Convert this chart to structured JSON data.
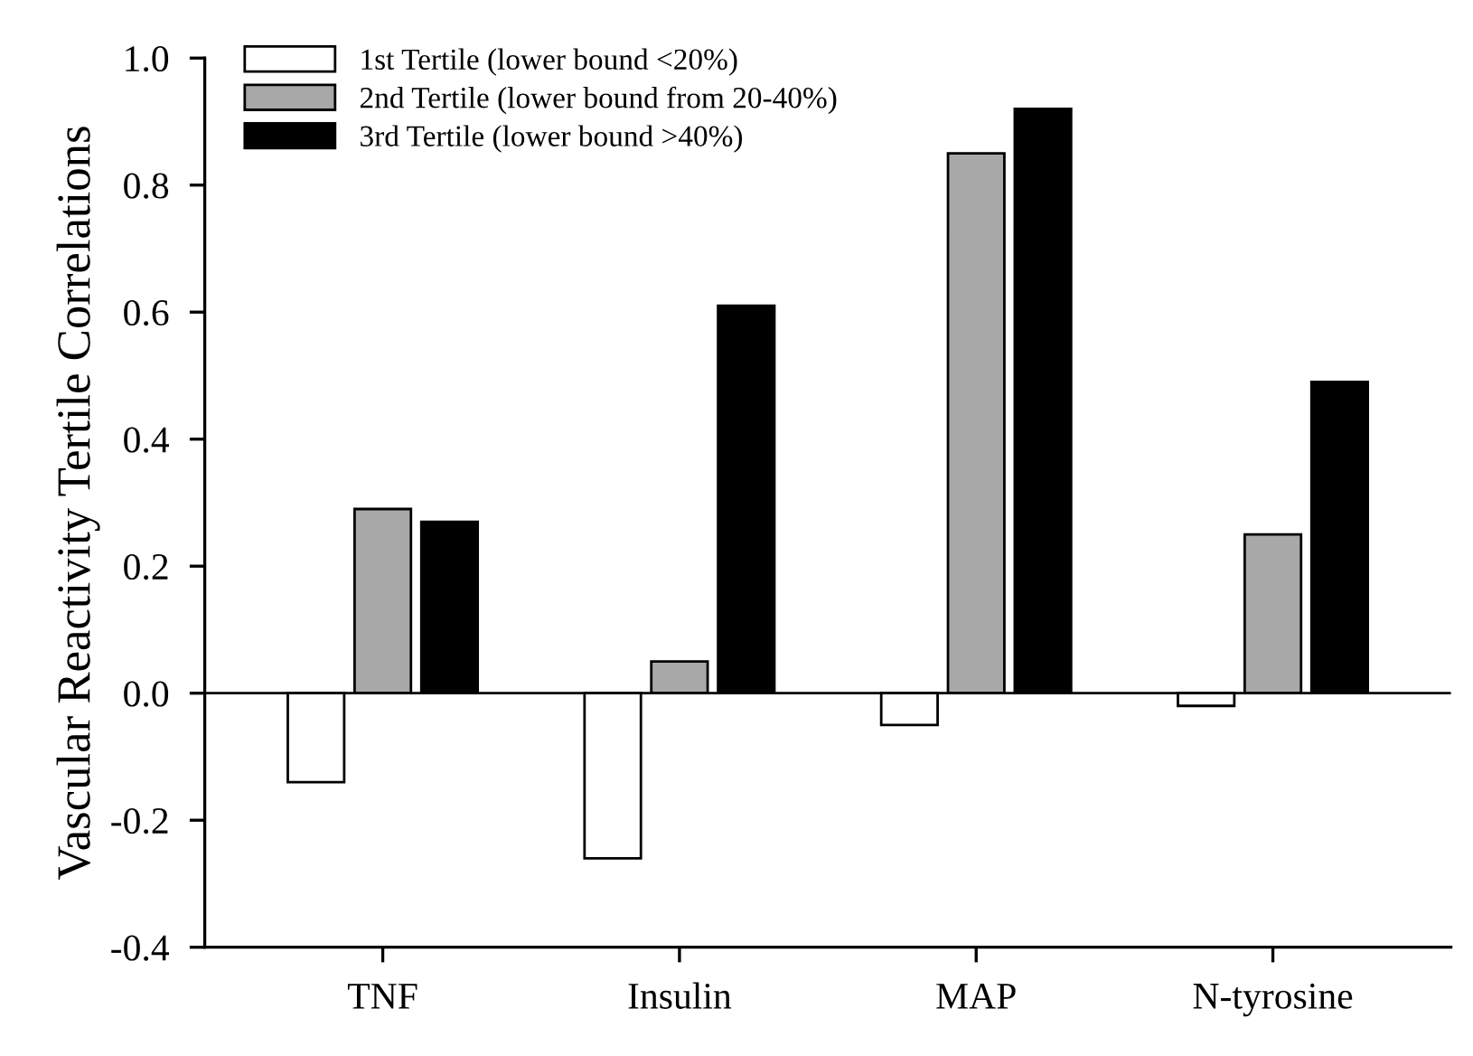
{
  "chart_data": {
    "type": "bar",
    "ylabel": "Vascular Reactivity Tertile Correlations",
    "categories": [
      "TNF",
      "Insulin",
      "MAP",
      "N-tyrosine"
    ],
    "series": [
      {
        "name": "1st Tertile (lower bound <20%)",
        "color": "#ffffff",
        "values": [
          -0.14,
          -0.26,
          -0.05,
          -0.02
        ]
      },
      {
        "name": "2nd Tertile (lower bound from 20-40%)",
        "color": "#a8a8a8",
        "values": [
          0.29,
          0.05,
          0.85,
          0.25
        ]
      },
      {
        "name": "3rd Tertile (lower bound >40%)",
        "color": "#000000",
        "values": [
          0.27,
          0.61,
          0.92,
          0.49
        ]
      }
    ],
    "ylim": [
      -0.4,
      1.0
    ],
    "yticks": [
      {
        "value": -0.4,
        "label": "-0.4"
      },
      {
        "value": -0.2,
        "label": "-0.2"
      },
      {
        "value": 0.0,
        "label": "0.0"
      },
      {
        "value": 0.2,
        "label": "0.2"
      },
      {
        "value": 0.4,
        "label": "0.4"
      },
      {
        "value": 0.6,
        "label": "0.6"
      },
      {
        "value": 0.8,
        "label": "0.8"
      },
      {
        "value": 1.0,
        "label": "1.0"
      }
    ],
    "ref_lines": [
      {
        "axis": "y",
        "value": 0,
        "color": "#000000"
      }
    ],
    "legend": "top left",
    "grid": false
  }
}
